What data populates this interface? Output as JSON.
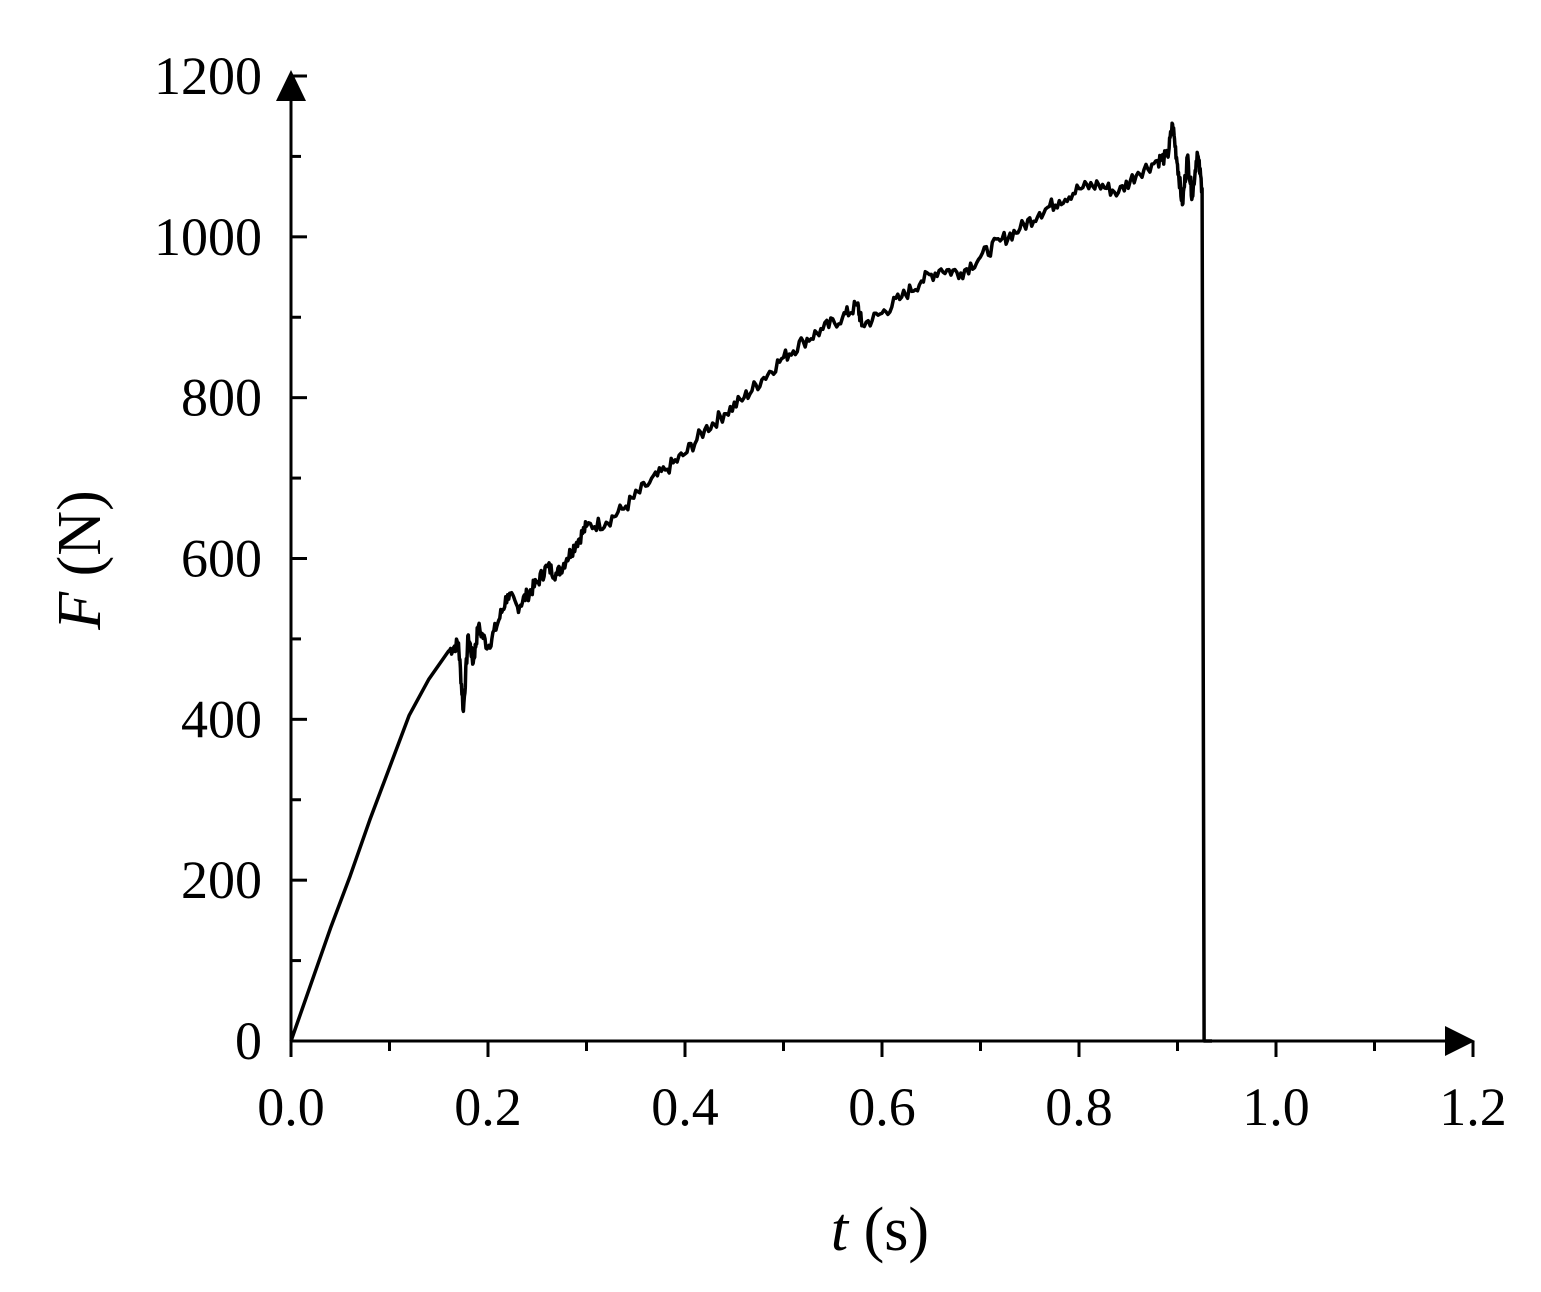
{
  "chart_data": {
    "type": "line",
    "title": "",
    "xlabel": {
      "symbol": "t",
      "unit": "(s)"
    },
    "ylabel": {
      "symbol": "F",
      "unit": "(N)"
    },
    "xlim": [
      0.0,
      1.2
    ],
    "ylim": [
      0,
      1200
    ],
    "xticks": [
      "0.0",
      "0.2",
      "0.4",
      "0.6",
      "0.8",
      "1.0",
      "1.2"
    ],
    "yticks": [
      "0",
      "200",
      "400",
      "600",
      "800",
      "1000",
      "1200"
    ],
    "grid": false,
    "legend": "none",
    "line_color": "#000000",
    "series": [
      {
        "x": [
          0.0,
          0.02,
          0.04,
          0.06,
          0.08,
          0.1,
          0.12,
          0.14,
          0.16,
          0.17,
          0.175,
          0.18,
          0.185,
          0.19,
          0.2,
          0.21,
          0.22,
          0.23,
          0.24,
          0.25,
          0.26,
          0.27,
          0.28,
          0.29,
          0.3,
          0.32,
          0.34,
          0.36,
          0.38,
          0.4,
          0.42,
          0.44,
          0.46,
          0.48,
          0.5,
          0.52,
          0.54,
          0.56,
          0.575,
          0.58,
          0.6,
          0.62,
          0.64,
          0.66,
          0.68,
          0.7,
          0.72,
          0.74,
          0.76,
          0.78,
          0.8,
          0.82,
          0.84,
          0.86,
          0.88,
          0.89,
          0.895,
          0.9,
          0.905,
          0.91,
          0.915,
          0.92,
          0.925,
          0.927,
          0.93,
          0.935
        ],
        "y": [
          0,
          70,
          140,
          205,
          275,
          340,
          405,
          450,
          485,
          495,
          410,
          505,
          470,
          515,
          490,
          520,
          555,
          540,
          555,
          570,
          590,
          580,
          600,
          620,
          640,
          645,
          665,
          690,
          710,
          730,
          760,
          780,
          800,
          825,
          850,
          870,
          885,
          900,
          915,
          890,
          905,
          925,
          945,
          960,
          955,
          975,
          995,
          1010,
          1030,
          1045,
          1060,
          1065,
          1055,
          1080,
          1095,
          1100,
          1140,
          1090,
          1040,
          1100,
          1050,
          1105,
          1060,
          0,
          0,
          0
        ]
      }
    ]
  }
}
